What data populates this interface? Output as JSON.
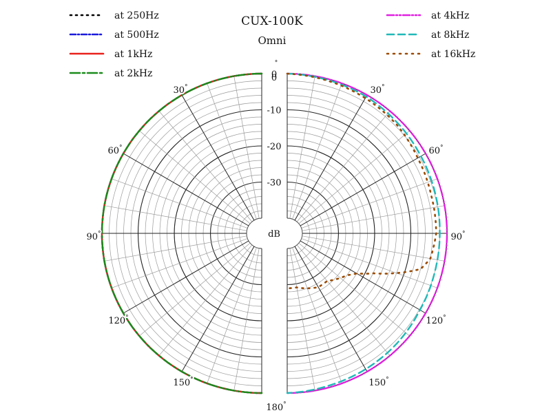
{
  "chart_data": {
    "type": "polar",
    "title": "CUX-100K",
    "subtitle": "Omni",
    "radial_unit": "dB",
    "radial_range": [
      -40,
      0
    ],
    "radial_ticks": [
      0,
      -10,
      -20,
      -30
    ],
    "radial_tick_labels": [
      "0",
      "-10",
      "-20",
      "-30"
    ],
    "angle_ticks": [
      0,
      30,
      60,
      90,
      120,
      150,
      180
    ],
    "angle_tick_labels": [
      "0",
      "30",
      "60",
      "90",
      "120",
      "150",
      "180"
    ],
    "degree_symbol": "°",
    "grid": true,
    "legend_placement": "top-left and top-right",
    "left_half_series": [
      "at 250Hz",
      "at 500Hz",
      "at 1kHz",
      "at 2kHz"
    ],
    "right_half_series": [
      "at 4kHz",
      "at 8kHz",
      "at 16kHz"
    ],
    "series": [
      {
        "name": "at 250Hz",
        "color": "#000000",
        "dash": "2,6",
        "side": "left",
        "angles": [
          0,
          30,
          60,
          90,
          120,
          150,
          180
        ],
        "values": [
          0,
          0,
          0,
          0,
          0,
          0,
          0
        ]
      },
      {
        "name": "at 500Hz",
        "color": "#1a1adb",
        "dash": "8,3,2,3",
        "side": "left",
        "angles": [
          0,
          30,
          60,
          90,
          120,
          150,
          180
        ],
        "values": [
          0,
          0,
          0,
          0,
          0,
          0,
          0
        ]
      },
      {
        "name": "at 1kHz",
        "color": "#e8201a",
        "dash": "",
        "side": "left",
        "angles": [
          0,
          30,
          60,
          90,
          120,
          150,
          180
        ],
        "values": [
          0,
          0,
          0,
          0,
          0,
          0,
          0
        ]
      },
      {
        "name": "at 2kHz",
        "color": "#1a8a1a",
        "dash": "14,4,3,4",
        "side": "left",
        "angles": [
          0,
          30,
          60,
          90,
          120,
          150,
          180
        ],
        "values": [
          0,
          0,
          0,
          0,
          0,
          0,
          0
        ]
      },
      {
        "name": "at 4kHz",
        "color": "#e020e0",
        "dash": "10,3,2,3,2,3",
        "side": "right",
        "angles": [
          0,
          15,
          30,
          45,
          60,
          75,
          90,
          105,
          120,
          135,
          150,
          165,
          180
        ],
        "values": [
          0,
          0,
          0,
          0,
          0,
          0,
          0,
          0,
          0,
          0,
          0,
          0,
          0
        ]
      },
      {
        "name": "at 8kHz",
        "color": "#20b8b8",
        "dash": "10,6",
        "side": "right",
        "angles": [
          0,
          15,
          30,
          45,
          60,
          75,
          90,
          105,
          120,
          135,
          150,
          165,
          180
        ],
        "values": [
          0,
          -0.3,
          -0.5,
          -1,
          -1.5,
          -1.8,
          -2,
          -2,
          -1.8,
          -1.2,
          -0.8,
          -0.5,
          0
        ]
      },
      {
        "name": "at 16kHz",
        "color": "#9a4a00",
        "dash": "2,7",
        "side": "right",
        "angles": [
          0,
          15,
          30,
          45,
          60,
          75,
          90,
          100,
          105,
          110,
          115,
          120,
          125,
          130,
          135,
          140,
          150,
          160,
          170,
          180
        ],
        "values": [
          0,
          -0.5,
          -1,
          -1.5,
          -2.5,
          -3,
          -3,
          -4,
          -6,
          -12,
          -18,
          -22,
          -24,
          -25,
          -26,
          -27,
          -27,
          -28,
          -29,
          -29
        ]
      }
    ]
  }
}
